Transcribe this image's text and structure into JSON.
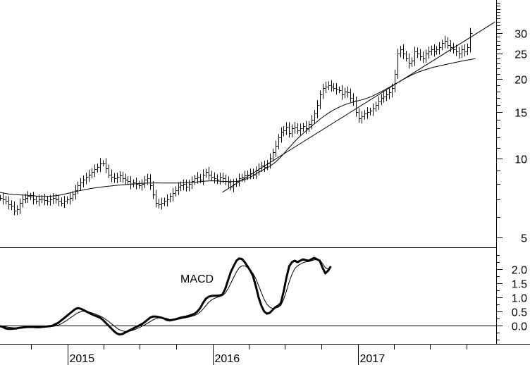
{
  "chart_data": [
    {
      "type": "line",
      "panel": "price",
      "y_scale": "log",
      "ylim": [
        4.6,
        40
      ],
      "y_ticks": [
        5,
        10,
        15,
        20,
        25,
        30
      ],
      "y_tick_labels": [
        "5",
        "10",
        "15",
        "20",
        "25",
        "30"
      ],
      "x_range": [
        "2014-07-15",
        "2017-12-15"
      ],
      "x_tick_labels": [
        "2015",
        "2016",
        "2017"
      ],
      "ohlc_weekly": {
        "start": "2014-07-15",
        "interval_days": 7,
        "close": [
          7.1,
          7.0,
          6.9,
          6.7,
          6.6,
          6.35,
          6.4,
          6.8,
          7.0,
          7.1,
          7.2,
          7.15,
          7.0,
          6.9,
          7.0,
          7.05,
          6.95,
          6.9,
          7.0,
          7.1,
          7.0,
          6.9,
          6.8,
          6.9,
          7.0,
          7.1,
          7.3,
          7.6,
          7.9,
          8.1,
          8.3,
          8.5,
          8.7,
          8.9,
          9.1,
          9.3,
          9.6,
          9.6,
          9.2,
          8.7,
          8.5,
          8.4,
          8.5,
          8.6,
          8.4,
          8.3,
          8.2,
          8.0,
          8.1,
          8.0,
          7.9,
          8.0,
          8.3,
          8.4,
          7.9,
          7.3,
          6.8,
          6.7,
          6.8,
          6.9,
          7.0,
          7.2,
          7.4,
          7.6,
          7.8,
          7.9,
          8.0,
          7.8,
          8.0,
          8.2,
          8.4,
          8.5,
          8.3,
          8.7,
          8.9,
          8.7,
          8.5,
          8.4,
          8.3,
          8.5,
          8.4,
          8.2,
          8.1,
          7.8,
          8.0,
          8.2,
          8.4,
          8.5,
          8.6,
          8.7,
          8.8,
          8.7,
          9.0,
          9.2,
          9.4,
          9.3,
          9.6,
          10.0,
          10.6,
          11.2,
          12.0,
          12.6,
          12.8,
          13.2,
          12.5,
          13.0,
          13.2,
          12.8,
          13.0,
          13.3,
          13.0,
          13.5,
          14.0,
          14.8,
          16.0,
          17.5,
          18.5,
          18.8,
          19.0,
          18.8,
          18.5,
          18.3,
          18.2,
          17.5,
          18.0,
          17.8,
          17.0,
          16.5,
          15.0,
          14.2,
          14.5,
          14.8,
          15.0,
          15.2,
          15.5,
          16.0,
          16.5,
          17.0,
          17.2,
          17.5,
          17.8,
          18.5,
          21.0,
          25.0,
          26.0,
          25.0,
          24.0,
          23.0,
          23.5,
          25.5,
          25.0,
          24.5,
          24.0,
          25.0,
          25.5,
          26.0,
          25.5,
          26.0,
          26.5,
          27.5,
          28.0,
          27.0,
          26.5,
          26.0,
          25.5,
          25.0,
          26.0,
          25.5,
          26.5,
          30.0
        ]
      },
      "moving_average": {
        "start": "2014-07-15",
        "interval_days": 7,
        "values": [
          7.45,
          7.4,
          7.37,
          7.34,
          7.32,
          7.3,
          7.29,
          7.28,
          7.27,
          7.26,
          7.25,
          7.24,
          7.22,
          7.2,
          7.19,
          7.18,
          7.18,
          7.18,
          7.19,
          7.2,
          7.22,
          7.25,
          7.28,
          7.32,
          7.36,
          7.4,
          7.44,
          7.49,
          7.53,
          7.57,
          7.6,
          7.64,
          7.67,
          7.7,
          7.73,
          7.76,
          7.78,
          7.81,
          7.83,
          7.85,
          7.87,
          7.89,
          7.91,
          7.93,
          7.95,
          7.96,
          7.98,
          8.0,
          8.01,
          8.02,
          8.04,
          8.05,
          8.06,
          8.07,
          8.07,
          8.08,
          8.08,
          8.08,
          8.07,
          8.07,
          8.07,
          8.07,
          8.07,
          8.07,
          8.07,
          8.08,
          8.09,
          8.1,
          8.11,
          8.12,
          8.13,
          8.15,
          8.17,
          8.19,
          8.21,
          8.22,
          8.23,
          8.23,
          8.22,
          8.2,
          8.19,
          8.18,
          8.17,
          8.17,
          8.17,
          8.19,
          8.22,
          8.26,
          8.32,
          8.4,
          8.5,
          8.62,
          8.74,
          8.86,
          8.98,
          9.1,
          9.22,
          9.35,
          9.5,
          9.68,
          9.9,
          10.15,
          10.42,
          10.72,
          11.0,
          11.3,
          11.6,
          11.9,
          12.18,
          12.45,
          12.72,
          12.98,
          13.25,
          13.52,
          13.8,
          14.08,
          14.35,
          14.6,
          14.85,
          15.08,
          15.3,
          15.5,
          15.68,
          15.85,
          16.0,
          16.15,
          16.28,
          16.4,
          16.5,
          16.6,
          16.7,
          16.82,
          16.95,
          17.1,
          17.28,
          17.48,
          17.7,
          17.92,
          18.15,
          18.4,
          18.65,
          18.9,
          19.15,
          19.42,
          19.7,
          19.98,
          20.25,
          20.5,
          20.75,
          20.98,
          21.2,
          21.4,
          21.58,
          21.75,
          21.92,
          22.08,
          22.22,
          22.35,
          22.48,
          22.6,
          22.72,
          22.84,
          22.96,
          23.08,
          23.2,
          23.32,
          23.44,
          23.55,
          23.65,
          23.75,
          23.85,
          23.95
        ]
      },
      "trendline": {
        "from": [
          "2016-01-26",
          7.45
        ],
        "to": [
          "2017-12-12",
          33.0
        ]
      }
    },
    {
      "type": "line",
      "panel": "indicator",
      "annotation": "MACD",
      "ylim": [
        -0.65,
        2.75
      ],
      "y_ticks": [
        0.0,
        0.5,
        1.0,
        1.5,
        2.0
      ],
      "y_tick_labels": [
        "0.0",
        "0.5",
        "1.0",
        "1.5",
        "2.0"
      ],
      "zero_line": true,
      "x_range": [
        "2014-07-15",
        "2017-12-15"
      ],
      "x_tick_labels": [
        "2015",
        "2016",
        "2017"
      ],
      "series": [
        {
          "style": "bold",
          "start": "2014-07-15",
          "interval_days": 7,
          "values": [
            -0.02,
            -0.05,
            -0.1,
            -0.12,
            -0.12,
            -0.11,
            -0.1,
            -0.08,
            -0.07,
            -0.06,
            -0.05,
            -0.05,
            -0.05,
            -0.06,
            -0.06,
            -0.05,
            -0.04,
            -0.03,
            -0.02,
            0.0,
            0.05,
            0.1,
            0.18,
            0.26,
            0.34,
            0.42,
            0.5,
            0.58,
            0.62,
            0.6,
            0.55,
            0.5,
            0.45,
            0.4,
            0.36,
            0.32,
            0.28,
            0.2,
            0.1,
            0.0,
            -0.1,
            -0.2,
            -0.28,
            -0.32,
            -0.3,
            -0.25,
            -0.2,
            -0.15,
            -0.1,
            -0.05,
            0.0,
            0.05,
            0.12,
            0.2,
            0.28,
            0.32,
            0.32,
            0.3,
            0.28,
            0.25,
            0.2,
            0.18,
            0.2,
            0.22,
            0.25,
            0.28,
            0.3,
            0.32,
            0.35,
            0.38,
            0.42,
            0.5,
            0.62,
            0.8,
            0.95,
            1.02,
            1.05,
            1.06,
            1.06,
            1.07,
            1.1,
            1.3,
            1.6,
            1.9,
            2.1,
            2.3,
            2.38,
            2.36,
            2.25,
            2.1,
            1.95,
            1.75,
            1.4,
            1.0,
            0.7,
            0.5,
            0.42,
            0.45,
            0.55,
            0.65,
            0.7,
            0.8,
            1.2,
            1.7,
            2.1,
            2.25,
            2.3,
            2.25,
            2.3,
            2.35,
            2.32,
            2.3,
            2.35,
            2.4,
            2.35,
            2.3,
            2.05,
            1.85,
            1.95,
            2.1
          ]
        },
        {
          "style": "thin",
          "start": "2014-07-15",
          "interval_days": 7,
          "values": [
            -0.01,
            -0.02,
            -0.04,
            -0.06,
            -0.07,
            -0.08,
            -0.08,
            -0.08,
            -0.08,
            -0.07,
            -0.07,
            -0.06,
            -0.06,
            -0.06,
            -0.06,
            -0.06,
            -0.05,
            -0.05,
            -0.04,
            -0.03,
            -0.01,
            0.02,
            0.06,
            0.12,
            0.18,
            0.25,
            0.32,
            0.39,
            0.45,
            0.49,
            0.51,
            0.5,
            0.48,
            0.45,
            0.42,
            0.38,
            0.34,
            0.29,
            0.22,
            0.15,
            0.07,
            -0.01,
            -0.09,
            -0.15,
            -0.19,
            -0.21,
            -0.21,
            -0.19,
            -0.16,
            -0.12,
            -0.08,
            -0.03,
            0.02,
            0.08,
            0.14,
            0.2,
            0.24,
            0.27,
            0.28,
            0.27,
            0.25,
            0.22,
            0.21,
            0.21,
            0.22,
            0.24,
            0.26,
            0.28,
            0.3,
            0.33,
            0.36,
            0.41,
            0.48,
            0.58,
            0.7,
            0.82,
            0.9,
            0.96,
            1.0,
            1.03,
            1.06,
            1.15,
            1.3,
            1.5,
            1.7,
            1.9,
            2.05,
            2.12,
            2.12,
            2.06,
            1.97,
            1.85,
            1.66,
            1.42,
            1.16,
            0.93,
            0.75,
            0.65,
            0.61,
            0.62,
            0.65,
            0.72,
            0.92,
            1.22,
            1.55,
            1.82,
            2.02,
            2.12,
            2.18,
            2.23,
            2.26,
            2.27,
            2.3,
            2.33,
            2.33,
            2.32,
            2.2,
            2.05,
            2.0,
            2.05
          ]
        }
      ]
    }
  ]
}
